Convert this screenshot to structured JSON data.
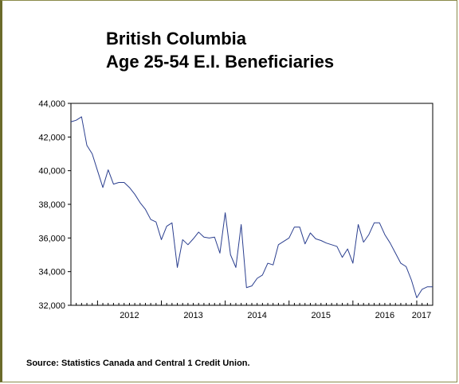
{
  "title_line1": "British Columbia",
  "title_line2": "Age 25-54 E.I. Beneficiaries",
  "source": "Source: Statistics Canada and Central 1 Credit Union.",
  "colors": {
    "line": "#2b3f8f",
    "axis": "#000000",
    "frame": "#6b6b2a"
  },
  "chart_data": {
    "type": "line",
    "title": "British Columbia Age 25-54 E.I. Beneficiaries",
    "xlabel": "",
    "ylabel": "",
    "ylim": [
      32000,
      44000
    ],
    "yticks": [
      32000,
      34000,
      36000,
      38000,
      40000,
      42000,
      44000
    ],
    "ytick_labels": [
      "32,000",
      "34,000",
      "36,000",
      "38,000",
      "40,000",
      "42,000",
      "44,000"
    ],
    "xlim": [
      "2011-08",
      "2017-04"
    ],
    "year_labels": [
      "2012",
      "2013",
      "2014",
      "2015",
      "2016",
      "2017"
    ],
    "grid": false,
    "legend": "none",
    "series": [
      {
        "x": [
          "2011-08",
          "2011-09",
          "2011-10",
          "2011-11",
          "2011-12",
          "2012-01",
          "2012-02",
          "2012-03",
          "2012-04",
          "2012-05",
          "2012-06",
          "2012-07",
          "2012-08",
          "2012-09",
          "2012-10",
          "2012-11",
          "2012-12",
          "2013-01",
          "2013-02",
          "2013-03",
          "2013-04",
          "2013-05",
          "2013-06",
          "2013-07",
          "2013-08",
          "2013-09",
          "2013-10",
          "2013-11",
          "2013-12",
          "2014-01",
          "2014-02",
          "2014-03",
          "2014-04",
          "2014-05",
          "2014-06",
          "2014-07",
          "2014-08",
          "2014-09",
          "2014-10",
          "2014-11",
          "2014-12",
          "2015-01",
          "2015-02",
          "2015-03",
          "2015-04",
          "2015-05",
          "2015-06",
          "2015-07",
          "2015-08",
          "2015-09",
          "2015-10",
          "2015-11",
          "2015-12",
          "2016-01",
          "2016-02",
          "2016-03",
          "2016-04",
          "2016-05",
          "2016-06",
          "2016-07",
          "2016-08",
          "2016-09",
          "2016-10",
          "2016-11",
          "2016-12",
          "2017-01",
          "2017-02",
          "2017-03",
          "2017-04"
        ],
        "values": [
          42900,
          43000,
          43200,
          41500,
          41000,
          40000,
          39000,
          40050,
          39200,
          39300,
          39300,
          39000,
          38600,
          38100,
          37700,
          37100,
          36950,
          35900,
          36700,
          36900,
          34250,
          35900,
          35600,
          35950,
          36350,
          36050,
          36000,
          36050,
          35100,
          37500,
          35000,
          34250,
          36800,
          33050,
          33150,
          33600,
          33800,
          34500,
          34400,
          35600,
          35800,
          36000,
          36650,
          36650,
          35650,
          36300,
          35950,
          35850,
          35700,
          35600,
          35500,
          34850,
          35350,
          34500,
          36800,
          35750,
          36200,
          36900,
          36900,
          36200,
          35700,
          35100,
          34500,
          34300,
          33500,
          32450,
          32950,
          33100,
          33100
        ]
      }
    ]
  }
}
